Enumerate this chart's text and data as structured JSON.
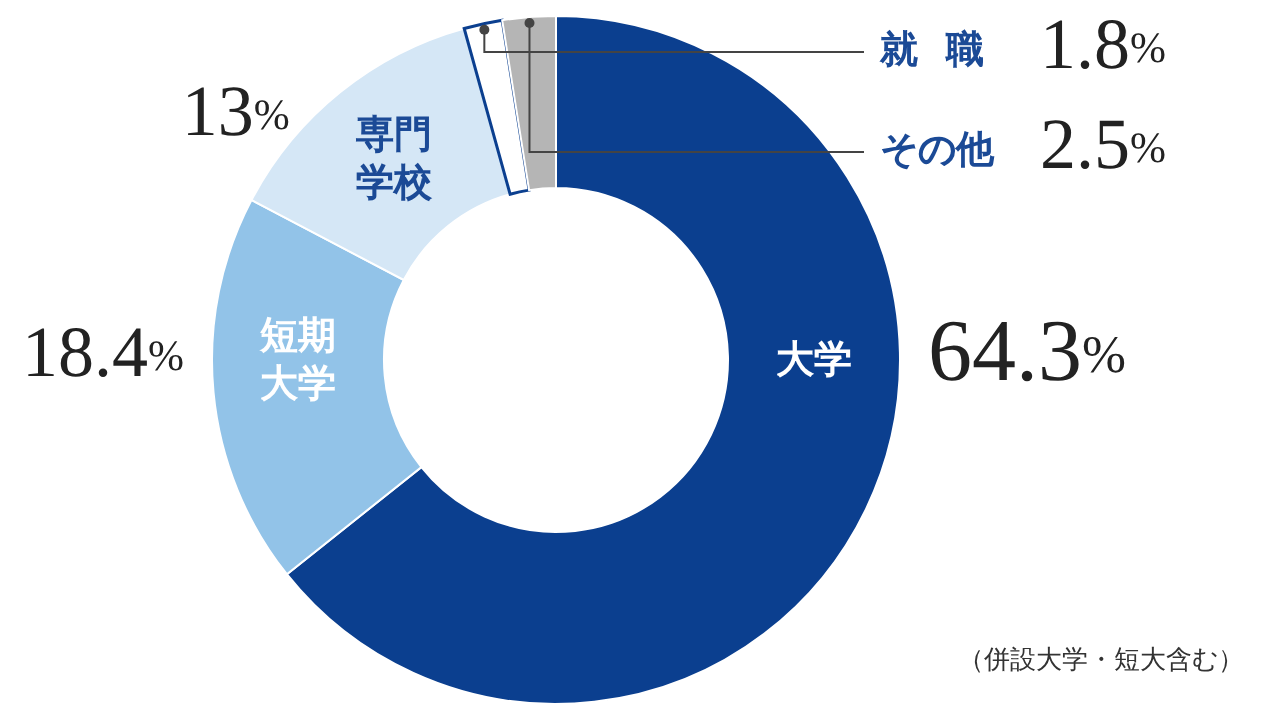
{
  "chart_data": {
    "type": "donut",
    "categories": [
      "大学",
      "短期大学",
      "専門学校",
      "就職",
      "その他"
    ],
    "values": [
      64.3,
      18.4,
      13,
      1.8,
      2.5
    ],
    "colors": [
      "#0b3f8f",
      "#92c3e8",
      "#d5e7f6",
      "#ffffff",
      "#b5b5b5"
    ],
    "value_labels": [
      "64.3%",
      "18.4%",
      "13%",
      "1.8%",
      "2.5%"
    ],
    "annotations": [
      "（併設大学・短大含む）"
    ]
  }
}
